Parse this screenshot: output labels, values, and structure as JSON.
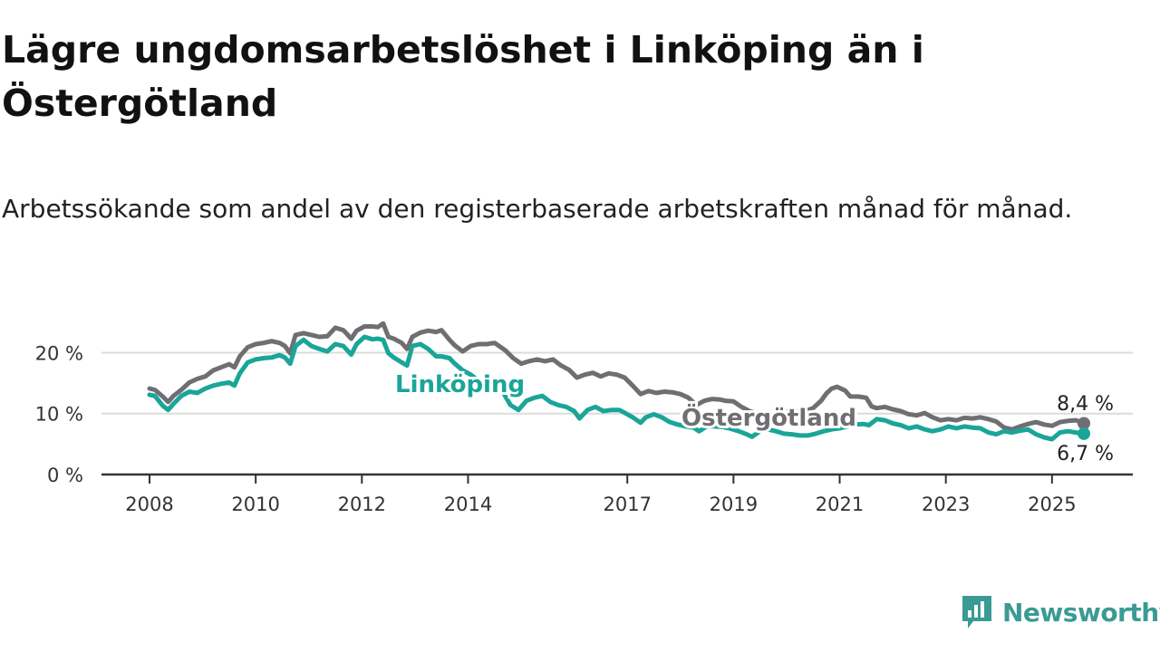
{
  "title": "Lägre ungdomsarbetslöshet i Linköping än i Östergötland",
  "subtitle": "Arbetssökande som andel av den registerbaserade arbetskraften månad för månad.",
  "brand": {
    "name": "Newsworthy",
    "icon": "newsworthy-logo-icon"
  },
  "colors": {
    "linkoping": "#1aa599",
    "ostergotland": "#6e6e73",
    "grid": "#dcdcdc",
    "axis": "#333333"
  },
  "chart_data": {
    "type": "line",
    "title": "Lägre ungdomsarbetslöshet i Linköping än i Östergötland",
    "subtitle": "Arbetssökande som andel av den registerbaserade arbetskraften månad för månad.",
    "x_unit": "year",
    "xlim": [
      2008.0,
      2025.6
    ],
    "ylim": [
      0,
      22
    ],
    "grid": "horizontal",
    "x_ticks": [
      {
        "value": 2008,
        "label": "2008"
      },
      {
        "value": 2010,
        "label": "2010"
      },
      {
        "value": 2012,
        "label": "2012"
      },
      {
        "value": 2014,
        "label": "2014"
      },
      {
        "value": 2017,
        "label": "2017"
      },
      {
        "value": 2019,
        "label": "2019"
      },
      {
        "value": 2021,
        "label": "2021"
      },
      {
        "value": 2023,
        "label": "2023"
      },
      {
        "value": 2025,
        "label": "2025"
      }
    ],
    "y_ticks": [
      {
        "value": 0,
        "label": "0 %"
      },
      {
        "value": 10,
        "label": "10 %"
      },
      {
        "value": 20,
        "label": "20 %"
      }
    ],
    "series": [
      {
        "name": "Östergötland",
        "key": "ostergotland",
        "end_label": "8,4 %",
        "points": [
          [
            2008.0,
            14.1
          ],
          [
            2008.1,
            13.9
          ],
          [
            2008.25,
            12.8
          ],
          [
            2008.35,
            11.9
          ],
          [
            2008.45,
            12.9
          ],
          [
            2008.6,
            13.9
          ],
          [
            2008.75,
            15.1
          ],
          [
            2008.9,
            15.7
          ],
          [
            2009.05,
            16.1
          ],
          [
            2009.2,
            17.1
          ],
          [
            2009.35,
            17.6
          ],
          [
            2009.5,
            18.1
          ],
          [
            2009.6,
            17.6
          ],
          [
            2009.7,
            19.4
          ],
          [
            2009.85,
            20.9
          ],
          [
            2010.0,
            21.4
          ],
          [
            2010.15,
            21.6
          ],
          [
            2010.3,
            21.9
          ],
          [
            2010.45,
            21.6
          ],
          [
            2010.55,
            21.1
          ],
          [
            2010.65,
            19.9
          ],
          [
            2010.75,
            22.9
          ],
          [
            2010.9,
            23.2
          ],
          [
            2011.05,
            22.9
          ],
          [
            2011.2,
            22.6
          ],
          [
            2011.35,
            22.7
          ],
          [
            2011.5,
            24.1
          ],
          [
            2011.65,
            23.7
          ],
          [
            2011.8,
            22.3
          ],
          [
            2011.9,
            23.6
          ],
          [
            2012.05,
            24.3
          ],
          [
            2012.2,
            24.3
          ],
          [
            2012.3,
            24.2
          ],
          [
            2012.4,
            24.8
          ],
          [
            2012.5,
            22.6
          ],
          [
            2012.6,
            22.3
          ],
          [
            2012.75,
            21.6
          ],
          [
            2012.85,
            20.6
          ],
          [
            2012.95,
            22.6
          ],
          [
            2013.1,
            23.3
          ],
          [
            2013.25,
            23.6
          ],
          [
            2013.4,
            23.4
          ],
          [
            2013.5,
            23.7
          ],
          [
            2013.65,
            22.1
          ],
          [
            2013.75,
            21.2
          ],
          [
            2013.9,
            20.2
          ],
          [
            2014.05,
            21.1
          ],
          [
            2014.2,
            21.4
          ],
          [
            2014.35,
            21.4
          ],
          [
            2014.5,
            21.6
          ],
          [
            2014.7,
            20.4
          ],
          [
            2014.85,
            19.1
          ],
          [
            2015.0,
            18.2
          ],
          [
            2015.15,
            18.6
          ],
          [
            2015.3,
            18.9
          ],
          [
            2015.45,
            18.6
          ],
          [
            2015.6,
            18.9
          ],
          [
            2015.75,
            17.9
          ],
          [
            2015.9,
            17.2
          ],
          [
            2016.05,
            15.9
          ],
          [
            2016.2,
            16.4
          ],
          [
            2016.35,
            16.7
          ],
          [
            2016.5,
            16.1
          ],
          [
            2016.65,
            16.6
          ],
          [
            2016.8,
            16.4
          ],
          [
            2016.95,
            15.9
          ],
          [
            2017.1,
            14.6
          ],
          [
            2017.25,
            13.2
          ],
          [
            2017.4,
            13.7
          ],
          [
            2017.55,
            13.4
          ],
          [
            2017.7,
            13.6
          ],
          [
            2017.85,
            13.5
          ],
          [
            2018.0,
            13.2
          ],
          [
            2018.15,
            12.6
          ],
          [
            2018.3,
            11.4
          ],
          [
            2018.45,
            12.1
          ],
          [
            2018.6,
            12.4
          ],
          [
            2018.75,
            12.3
          ],
          [
            2018.85,
            12.1
          ],
          [
            2019.0,
            12.0
          ],
          [
            2019.15,
            11.1
          ],
          [
            2019.3,
            10.4
          ],
          [
            2019.45,
            10.1
          ],
          [
            2019.6,
            9.9
          ],
          [
            2019.75,
            9.6
          ],
          [
            2019.9,
            9.9
          ],
          [
            2020.05,
            10.4
          ],
          [
            2020.2,
            10.2
          ],
          [
            2020.35,
            10.4
          ],
          [
            2020.5,
            10.9
          ],
          [
            2020.65,
            12.1
          ],
          [
            2020.75,
            13.3
          ],
          [
            2020.85,
            14.1
          ],
          [
            2020.95,
            14.4
          ],
          [
            2021.1,
            13.8
          ],
          [
            2021.2,
            12.8
          ],
          [
            2021.35,
            12.8
          ],
          [
            2021.5,
            12.6
          ],
          [
            2021.6,
            11.2
          ],
          [
            2021.7,
            10.9
          ],
          [
            2021.85,
            11.1
          ],
          [
            2022.0,
            10.7
          ],
          [
            2022.15,
            10.4
          ],
          [
            2022.3,
            9.9
          ],
          [
            2022.45,
            9.7
          ],
          [
            2022.6,
            10.1
          ],
          [
            2022.75,
            9.4
          ],
          [
            2022.9,
            8.9
          ],
          [
            2023.05,
            9.1
          ],
          [
            2023.2,
            8.9
          ],
          [
            2023.35,
            9.3
          ],
          [
            2023.5,
            9.2
          ],
          [
            2023.65,
            9.4
          ],
          [
            2023.8,
            9.1
          ],
          [
            2023.95,
            8.7
          ],
          [
            2024.1,
            7.7
          ],
          [
            2024.25,
            7.4
          ],
          [
            2024.4,
            7.9
          ],
          [
            2024.55,
            8.3
          ],
          [
            2024.7,
            8.6
          ],
          [
            2024.85,
            8.2
          ],
          [
            2025.0,
            8.0
          ],
          [
            2025.15,
            8.6
          ],
          [
            2025.3,
            8.8
          ],
          [
            2025.45,
            8.9
          ],
          [
            2025.6,
            8.4
          ]
        ]
      },
      {
        "name": "Linköping",
        "key": "linkoping",
        "end_label": "6,7 %",
        "points": [
          [
            2008.0,
            13.1
          ],
          [
            2008.1,
            12.9
          ],
          [
            2008.25,
            11.3
          ],
          [
            2008.35,
            10.6
          ],
          [
            2008.45,
            11.6
          ],
          [
            2008.6,
            12.9
          ],
          [
            2008.75,
            13.6
          ],
          [
            2008.9,
            13.4
          ],
          [
            2009.05,
            14.1
          ],
          [
            2009.2,
            14.6
          ],
          [
            2009.35,
            14.9
          ],
          [
            2009.5,
            15.1
          ],
          [
            2009.6,
            14.6
          ],
          [
            2009.7,
            16.6
          ],
          [
            2009.85,
            18.4
          ],
          [
            2010.0,
            18.9
          ],
          [
            2010.15,
            19.1
          ],
          [
            2010.3,
            19.2
          ],
          [
            2010.45,
            19.6
          ],
          [
            2010.55,
            19.2
          ],
          [
            2010.65,
            18.2
          ],
          [
            2010.75,
            21.1
          ],
          [
            2010.9,
            22.1
          ],
          [
            2011.05,
            21.1
          ],
          [
            2011.2,
            20.6
          ],
          [
            2011.35,
            20.2
          ],
          [
            2011.5,
            21.4
          ],
          [
            2011.65,
            21.1
          ],
          [
            2011.8,
            19.7
          ],
          [
            2011.9,
            21.4
          ],
          [
            2012.05,
            22.6
          ],
          [
            2012.2,
            22.2
          ],
          [
            2012.3,
            22.3
          ],
          [
            2012.4,
            22.1
          ],
          [
            2012.5,
            19.9
          ],
          [
            2012.6,
            19.2
          ],
          [
            2012.75,
            18.4
          ],
          [
            2012.85,
            17.9
          ],
          [
            2012.95,
            21.1
          ],
          [
            2013.1,
            21.4
          ],
          [
            2013.25,
            20.6
          ],
          [
            2013.4,
            19.4
          ],
          [
            2013.5,
            19.4
          ],
          [
            2013.65,
            19.1
          ],
          [
            2013.75,
            18.2
          ],
          [
            2013.9,
            17.1
          ],
          [
            2014.05,
            16.4
          ],
          [
            2014.2,
            15.4
          ],
          [
            2014.35,
            14.9
          ],
          [
            2014.5,
            14.4
          ],
          [
            2014.65,
            13.6
          ],
          [
            2014.8,
            11.4
          ],
          [
            2014.95,
            10.6
          ],
          [
            2015.1,
            12.1
          ],
          [
            2015.25,
            12.6
          ],
          [
            2015.4,
            12.9
          ],
          [
            2015.55,
            11.9
          ],
          [
            2015.7,
            11.4
          ],
          [
            2015.85,
            11.1
          ],
          [
            2016.0,
            10.4
          ],
          [
            2016.1,
            9.2
          ],
          [
            2016.25,
            10.6
          ],
          [
            2016.4,
            11.1
          ],
          [
            2016.55,
            10.4
          ],
          [
            2016.7,
            10.6
          ],
          [
            2016.85,
            10.6
          ],
          [
            2017.0,
            9.9
          ],
          [
            2017.1,
            9.4
          ],
          [
            2017.25,
            8.5
          ],
          [
            2017.35,
            9.4
          ],
          [
            2017.5,
            9.9
          ],
          [
            2017.65,
            9.4
          ],
          [
            2017.8,
            8.6
          ],
          [
            2017.95,
            8.2
          ],
          [
            2018.1,
            7.9
          ],
          [
            2018.25,
            7.7
          ],
          [
            2018.35,
            7.1
          ],
          [
            2018.5,
            7.9
          ],
          [
            2018.65,
            7.9
          ],
          [
            2018.8,
            7.8
          ],
          [
            2018.95,
            7.5
          ],
          [
            2019.1,
            7.1
          ],
          [
            2019.25,
            6.6
          ],
          [
            2019.35,
            6.2
          ],
          [
            2019.5,
            7.1
          ],
          [
            2019.65,
            7.4
          ],
          [
            2019.8,
            7.1
          ],
          [
            2019.95,
            6.7
          ],
          [
            2020.1,
            6.6
          ],
          [
            2020.25,
            6.4
          ],
          [
            2020.4,
            6.4
          ],
          [
            2020.55,
            6.7
          ],
          [
            2020.7,
            7.1
          ],
          [
            2020.85,
            7.4
          ],
          [
            2021.0,
            7.6
          ],
          [
            2021.15,
            7.9
          ],
          [
            2021.3,
            8.2
          ],
          [
            2021.45,
            8.3
          ],
          [
            2021.55,
            8.1
          ],
          [
            2021.7,
            9.1
          ],
          [
            2021.85,
            8.9
          ],
          [
            2022.0,
            8.4
          ],
          [
            2022.15,
            8.1
          ],
          [
            2022.3,
            7.6
          ],
          [
            2022.45,
            7.9
          ],
          [
            2022.6,
            7.4
          ],
          [
            2022.75,
            7.1
          ],
          [
            2022.9,
            7.4
          ],
          [
            2023.05,
            7.9
          ],
          [
            2023.2,
            7.6
          ],
          [
            2023.35,
            7.9
          ],
          [
            2023.5,
            7.7
          ],
          [
            2023.65,
            7.6
          ],
          [
            2023.8,
            6.9
          ],
          [
            2023.95,
            6.6
          ],
          [
            2024.1,
            7.1
          ],
          [
            2024.25,
            6.9
          ],
          [
            2024.4,
            7.2
          ],
          [
            2024.55,
            7.4
          ],
          [
            2024.7,
            6.6
          ],
          [
            2024.85,
            6.1
          ],
          [
            2025.0,
            5.8
          ],
          [
            2025.15,
            6.9
          ],
          [
            2025.3,
            7.1
          ],
          [
            2025.45,
            6.9
          ],
          [
            2025.6,
            6.7
          ]
        ]
      }
    ]
  }
}
